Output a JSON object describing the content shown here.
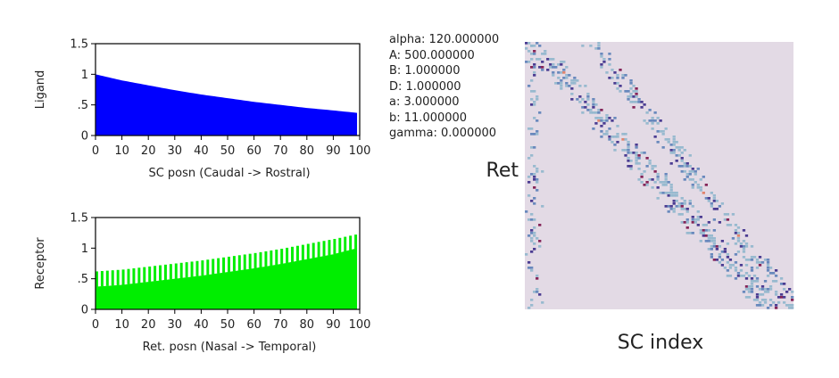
{
  "params": [
    "alpha: 120.000000",
    "A: 500.000000",
    "B: 1.000000",
    "D: 1.000000",
    "a: 3.000000",
    "b: 11.000000",
    "gamma: 0.000000"
  ],
  "chart_data": [
    {
      "type": "area",
      "ylabel": "Ligand",
      "xlabel": "SC posn (Caudal -> Rostral)",
      "xlim": [
        0,
        100
      ],
      "ylim": [
        0,
        1.5
      ],
      "xticks": [
        0,
        10,
        20,
        30,
        40,
        50,
        60,
        70,
        80,
        90,
        100
      ],
      "yticks": [
        0,
        0.5,
        1,
        1.5
      ],
      "ytick_labels": [
        "0",
        ".5",
        "1",
        "1.5"
      ],
      "series": [
        {
          "color": "#0000ff",
          "x": [
            0,
            10,
            20,
            30,
            40,
            50,
            60,
            70,
            80,
            90,
            99
          ],
          "y": [
            1.0,
            0.9,
            0.82,
            0.74,
            0.67,
            0.61,
            0.55,
            0.5,
            0.45,
            0.41,
            0.37
          ]
        }
      ]
    },
    {
      "type": "bar",
      "ylabel": "Receptor",
      "xlabel": "Ret. posn (Nasal -> Temporal)",
      "xlim": [
        0,
        100
      ],
      "ylim": [
        0,
        1.5
      ],
      "xticks": [
        0,
        10,
        20,
        30,
        40,
        50,
        60,
        70,
        80,
        90,
        100
      ],
      "yticks": [
        0,
        0.5,
        1,
        1.5
      ],
      "ytick_labels": [
        "0",
        ".5",
        "1",
        "1.5"
      ],
      "series": [
        {
          "color": "#00ee00",
          "x": [
            0,
            10,
            20,
            30,
            40,
            50,
            60,
            70,
            80,
            90,
            99
          ],
          "y": [
            0.37,
            0.4,
            0.45,
            0.5,
            0.55,
            0.61,
            0.67,
            0.74,
            0.82,
            0.9,
            1.0
          ]
        },
        {
          "color": "#00ee00",
          "x": [
            0,
            10,
            20,
            30,
            40,
            50,
            60,
            70,
            80,
            90,
            99
          ],
          "y": [
            0.62,
            0.65,
            0.7,
            0.75,
            0.8,
            0.86,
            0.92,
            0.99,
            1.07,
            1.15,
            1.23
          ]
        }
      ]
    },
    {
      "type": "heatmap",
      "ylabel": "Ret",
      "xlabel": "SC index",
      "background": "#e3dae5",
      "colors": [
        "#8fb6cc",
        "#5b80b8",
        "#3a2a88",
        "#7a1048",
        "#e07a5f"
      ]
    }
  ]
}
